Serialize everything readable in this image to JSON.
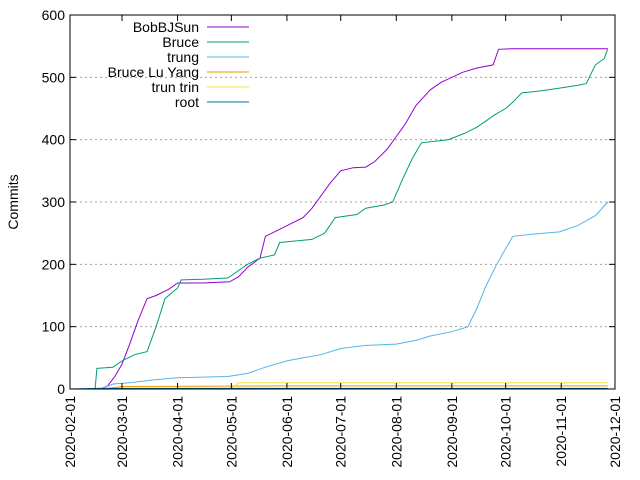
{
  "chart_data": {
    "type": "line",
    "ylabel": "Commits",
    "ylim": [
      0,
      600
    ],
    "yticks": [
      "0",
      "100",
      "200",
      "300",
      "400",
      "500",
      "600"
    ],
    "xlim": [
      "2020-02-01",
      "2020-12-01"
    ],
    "xticks": [
      "2020-02-01",
      "2020-03-01",
      "2020-04-01",
      "2020-05-01",
      "2020-06-01",
      "2020-07-01",
      "2020-08-01",
      "2020-09-01",
      "2020-10-01",
      "2020-11-01",
      "2020-12-01"
    ],
    "grid": true,
    "legend_position": "top-left",
    "series": [
      {
        "name": "BobBJSun",
        "color": "#9400d3",
        "points": [
          [
            "2020-02-18",
            0
          ],
          [
            "2020-02-22",
            5
          ],
          [
            "2020-02-26",
            20
          ],
          [
            "2020-03-01",
            40
          ],
          [
            "2020-03-05",
            70
          ],
          [
            "2020-03-10",
            110
          ],
          [
            "2020-03-15",
            145
          ],
          [
            "2020-03-20",
            150
          ],
          [
            "2020-03-27",
            160
          ],
          [
            "2020-04-01",
            170
          ],
          [
            "2020-04-15",
            170
          ],
          [
            "2020-04-30",
            172
          ],
          [
            "2020-05-05",
            180
          ],
          [
            "2020-05-10",
            195
          ],
          [
            "2020-05-17",
            210
          ],
          [
            "2020-05-20",
            245
          ],
          [
            "2020-05-25",
            252
          ],
          [
            "2020-06-01",
            262
          ],
          [
            "2020-06-10",
            275
          ],
          [
            "2020-06-15",
            290
          ],
          [
            "2020-06-20",
            310
          ],
          [
            "2020-06-25",
            330
          ],
          [
            "2020-07-01",
            350
          ],
          [
            "2020-07-08",
            355
          ],
          [
            "2020-07-15",
            356
          ],
          [
            "2020-07-20",
            365
          ],
          [
            "2020-07-27",
            385
          ],
          [
            "2020-08-01",
            405
          ],
          [
            "2020-08-06",
            425
          ],
          [
            "2020-08-12",
            455
          ],
          [
            "2020-08-20",
            480
          ],
          [
            "2020-08-26",
            492
          ],
          [
            "2020-09-01",
            500
          ],
          [
            "2020-09-07",
            508
          ],
          [
            "2020-09-15",
            515
          ],
          [
            "2020-09-24",
            520
          ],
          [
            "2020-09-27",
            545
          ],
          [
            "2020-10-05",
            546
          ],
          [
            "2020-11-27",
            546
          ]
        ]
      },
      {
        "name": "Bruce",
        "color": "#009e73",
        "points": [
          [
            "2020-02-15",
            0
          ],
          [
            "2020-02-16",
            33
          ],
          [
            "2020-02-25",
            35
          ],
          [
            "2020-03-01",
            45
          ],
          [
            "2020-03-08",
            55
          ],
          [
            "2020-03-15",
            60
          ],
          [
            "2020-03-20",
            100
          ],
          [
            "2020-03-25",
            145
          ],
          [
            "2020-04-01",
            162
          ],
          [
            "2020-04-03",
            175
          ],
          [
            "2020-04-15",
            176
          ],
          [
            "2020-04-29",
            178
          ],
          [
            "2020-05-05",
            190
          ],
          [
            "2020-05-10",
            200
          ],
          [
            "2020-05-17",
            210
          ],
          [
            "2020-05-25",
            215
          ],
          [
            "2020-05-28",
            235
          ],
          [
            "2020-06-15",
            240
          ],
          [
            "2020-06-22",
            250
          ],
          [
            "2020-06-28",
            275
          ],
          [
            "2020-07-10",
            280
          ],
          [
            "2020-07-15",
            290
          ],
          [
            "2020-07-25",
            295
          ],
          [
            "2020-07-30",
            300
          ],
          [
            "2020-08-05",
            340
          ],
          [
            "2020-08-10",
            370
          ],
          [
            "2020-08-15",
            395
          ],
          [
            "2020-08-30",
            400
          ],
          [
            "2020-09-08",
            410
          ],
          [
            "2020-09-15",
            420
          ],
          [
            "2020-09-25",
            440
          ],
          [
            "2020-10-01",
            450
          ],
          [
            "2020-10-05",
            460
          ],
          [
            "2020-10-10",
            475
          ],
          [
            "2020-10-20",
            478
          ],
          [
            "2020-11-01",
            483
          ],
          [
            "2020-11-10",
            487
          ],
          [
            "2020-11-15",
            490
          ],
          [
            "2020-11-20",
            520
          ],
          [
            "2020-11-25",
            530
          ],
          [
            "2020-11-27",
            546
          ]
        ]
      },
      {
        "name": "trung",
        "color": "#56b4e9",
        "points": [
          [
            "2020-02-18",
            0
          ],
          [
            "2020-02-25",
            8
          ],
          [
            "2020-03-05",
            10
          ],
          [
            "2020-03-20",
            15
          ],
          [
            "2020-04-01",
            18
          ],
          [
            "2020-04-29",
            20
          ],
          [
            "2020-05-10",
            25
          ],
          [
            "2020-05-20",
            35
          ],
          [
            "2020-06-01",
            45
          ],
          [
            "2020-06-10",
            50
          ],
          [
            "2020-06-20",
            55
          ],
          [
            "2020-07-01",
            65
          ],
          [
            "2020-07-15",
            70
          ],
          [
            "2020-08-01",
            72
          ],
          [
            "2020-08-12",
            78
          ],
          [
            "2020-08-20",
            85
          ],
          [
            "2020-09-01",
            92
          ],
          [
            "2020-09-10",
            100
          ],
          [
            "2020-09-15",
            130
          ],
          [
            "2020-09-20",
            165
          ],
          [
            "2020-09-26",
            200
          ],
          [
            "2020-09-30",
            220
          ],
          [
            "2020-10-05",
            245
          ],
          [
            "2020-10-15",
            248
          ],
          [
            "2020-10-31",
            252
          ],
          [
            "2020-11-10",
            262
          ],
          [
            "2020-11-20",
            278
          ],
          [
            "2020-11-27",
            300
          ]
        ]
      },
      {
        "name": "Bruce Lu Yang",
        "color": "#e69f00",
        "points": [
          [
            "2020-02-20",
            0
          ],
          [
            "2020-03-01",
            4
          ],
          [
            "2020-06-01",
            5
          ],
          [
            "2020-11-27",
            5
          ]
        ]
      },
      {
        "name": "trun trin",
        "color": "#f0e442",
        "points": [
          [
            "2020-05-01",
            0
          ],
          [
            "2020-05-05",
            10
          ],
          [
            "2020-11-27",
            10
          ]
        ]
      },
      {
        "name": "root",
        "color": "#0072b2",
        "points": [
          [
            "2020-02-01",
            0
          ],
          [
            "2020-02-17",
            1
          ],
          [
            "2020-11-27",
            1
          ]
        ]
      }
    ]
  }
}
